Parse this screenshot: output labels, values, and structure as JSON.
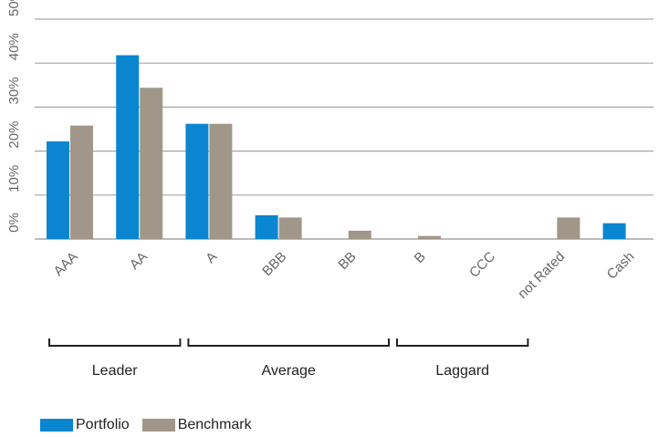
{
  "chart_data": {
    "type": "bar",
    "categories": [
      "AAA",
      "AA",
      "A",
      "BBB",
      "BB",
      "B",
      "CCC",
      "not Rated",
      "Cash"
    ],
    "series": [
      {
        "name": "Portfolio",
        "color": "#0a86d1",
        "values": [
          22.2,
          41.8,
          26.2,
          5.4,
          0,
          0,
          0,
          0,
          3.6
        ]
      },
      {
        "name": "Benchmark",
        "color": "#a09788",
        "values": [
          25.8,
          34.4,
          26.2,
          4.9,
          1.9,
          0.7,
          0,
          4.9,
          0
        ]
      }
    ],
    "yticks": [
      "0%",
      "10%",
      "20%",
      "30%",
      "40%",
      "50%"
    ],
    "ylim": [
      0,
      50
    ],
    "grid": true,
    "legend_position": "bottom-left",
    "groups": [
      {
        "label": "Leader",
        "from": "AAA",
        "to": "AA"
      },
      {
        "label": "Average",
        "from": "A",
        "to": "BB"
      },
      {
        "label": "Laggard",
        "from": "B",
        "to": "CCC"
      }
    ]
  },
  "legend": {
    "portfolio_label": "Portfolio",
    "benchmark_label": "Benchmark"
  }
}
